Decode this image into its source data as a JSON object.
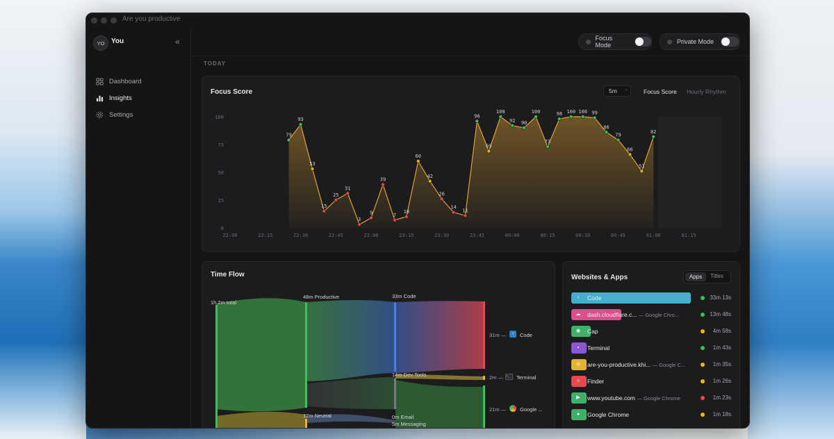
{
  "window": {
    "title": "Are you productive"
  },
  "sidebar": {
    "avatar_initials": "YO",
    "username": "You",
    "collapse_icon": "double-chevron-left",
    "items": [
      {
        "label": "Dashboard",
        "icon": "grid-icon"
      },
      {
        "label": "Insights",
        "icon": "bar-chart-icon",
        "active": true
      },
      {
        "label": "Settings",
        "icon": "gear-icon"
      }
    ]
  },
  "topbar": {
    "focus_mode_label": "Focus Mode",
    "private_mode_label": "Private Mode",
    "focus_mode_on": false,
    "private_mode_on": false
  },
  "section_label": "TODAY",
  "focus": {
    "title": "Focus Score",
    "interval": "5m",
    "tabs": [
      "Focus Score",
      "Hourly Rhythm"
    ],
    "active_tab": "Focus Score"
  },
  "chart_data": {
    "type": "area",
    "title": "Focus Score",
    "xlabel": "",
    "ylabel": "",
    "ylim": [
      0,
      100
    ],
    "yticks": [
      100,
      75,
      50,
      25,
      0
    ],
    "xticks": [
      "22:00",
      "22:15",
      "22:30",
      "22:45",
      "23:00",
      "23:15",
      "23:30",
      "23:45",
      "00:00",
      "00:15",
      "00:30",
      "00:45",
      "01:00",
      "01:15"
    ],
    "x": [
      "22:25",
      "22:30",
      "22:35",
      "22:40",
      "22:45",
      "22:50",
      "22:55",
      "23:00",
      "23:05",
      "23:10",
      "23:15",
      "23:20",
      "23:25",
      "23:30",
      "23:35",
      "23:40",
      "23:45",
      "23:50",
      "23:55",
      "00:00",
      "00:05",
      "00:10",
      "00:15",
      "00:20",
      "00:25",
      "00:30",
      "00:35",
      "00:40",
      "00:45",
      "00:50",
      "00:55",
      "01:00"
    ],
    "values": [
      79,
      93,
      53,
      15,
      25,
      31,
      3,
      9,
      39,
      7,
      10,
      60,
      42,
      26,
      14,
      11,
      96,
      69,
      100,
      92,
      90,
      100,
      73,
      98,
      100,
      100,
      99,
      86,
      79,
      66,
      51,
      82
    ],
    "point_labels": [
      "79",
      "93",
      "53",
      "15",
      "25",
      "31",
      "3",
      "9",
      "39",
      "7",
      "10",
      "60",
      "42",
      "26",
      "14",
      "11",
      "96",
      "69",
      "100",
      "92",
      "90",
      "100",
      "73",
      "98",
      "100",
      "100",
      "99",
      "86",
      "79",
      "66",
      "51",
      "82"
    ],
    "colors": {
      "high": "#3fbf5a",
      "mid": "#e2b431",
      "low": "#e5484d",
      "line": "#e0a432"
    },
    "grid": false
  },
  "timeflow": {
    "title": "Time Flow",
    "total_label": "1h 2m total",
    "productive_label": "48m Productive",
    "neutral_label": "12m Neutral",
    "code_label": "33m Code",
    "devtools_label": "14m Dev Tools",
    "email_label": "0m Email",
    "messaging_label": "5m Messaging",
    "out_code": {
      "time": "31m —",
      "name": "Code"
    },
    "out_terminal": {
      "time": "2m —",
      "name": "Terminal"
    },
    "out_chrome": {
      "time": "21m —",
      "name": "Google ..."
    }
  },
  "websites": {
    "title": "Websites & Apps",
    "tabs": [
      "Apps",
      "Titles"
    ],
    "active_tab": "Apps",
    "rows": [
      {
        "name": "Code",
        "sub": "",
        "time": "33m 13s",
        "color": "#49aecb",
        "status": "#3fbf5a",
        "icon": "vscode-icon",
        "fill": 1.0
      },
      {
        "name": "dash.cloudflare.c...",
        "sub": "— Google Chro...",
        "time": "13m 48s",
        "color": "#d94f8c",
        "status": "#3fbf5a",
        "icon": "cloudflare-icon",
        "fill": 0.42
      },
      {
        "name": "Cap",
        "sub": "",
        "time": "4m 58s",
        "color": "#3db06a",
        "status": "#e2b431",
        "icon": "cap-icon",
        "fill": 0.16
      },
      {
        "name": "Terminal",
        "sub": "",
        "time": "1m 43s",
        "color": "#8a57d6",
        "status": "#3fbf5a",
        "icon": "terminal-icon",
        "fill": 0.06
      },
      {
        "name": "are-you-productive.khi...",
        "sub": "— Google C...",
        "time": "1m 35s",
        "color": "#e2b431",
        "status": "#e2b431",
        "icon": "globe-icon",
        "fill": 0.05
      },
      {
        "name": "Finder",
        "sub": "",
        "time": "1m 26s",
        "color": "#e5484d",
        "status": "#e2b431",
        "icon": "finder-icon",
        "fill": 0.05
      },
      {
        "name": "www.youtube.com",
        "sub": "— Google Chrome",
        "time": "1m 23s",
        "color": "#3db06a",
        "status": "#e5484d",
        "icon": "youtube-icon",
        "fill": 0.05
      },
      {
        "name": "Google Chrome",
        "sub": "",
        "time": "1m 18s",
        "color": "#3db06a",
        "status": "#e2b431",
        "icon": "chrome-icon",
        "fill": 0.05
      }
    ]
  }
}
